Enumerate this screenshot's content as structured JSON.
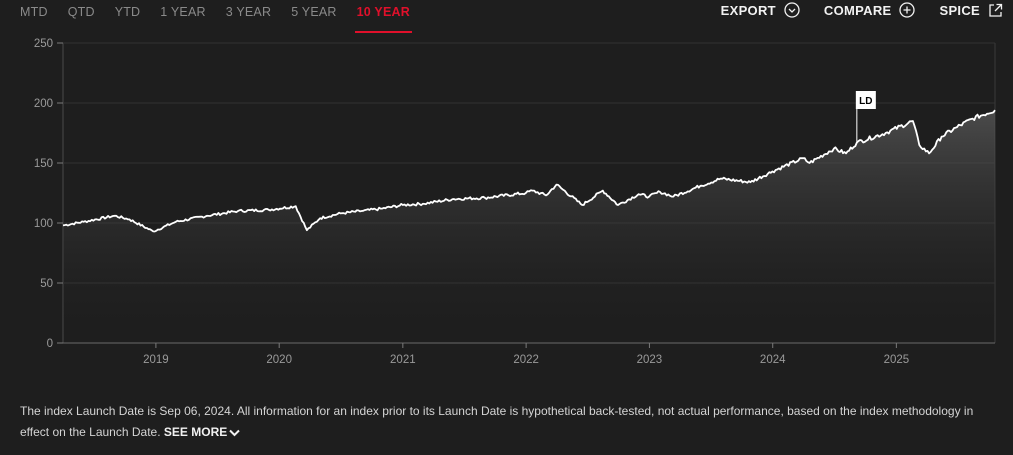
{
  "tabs": [
    {
      "label": "MTD",
      "active": false
    },
    {
      "label": "QTD",
      "active": false
    },
    {
      "label": "YTD",
      "active": false
    },
    {
      "label": "1 YEAR",
      "active": false
    },
    {
      "label": "3 YEAR",
      "active": false
    },
    {
      "label": "5 YEAR",
      "active": false
    },
    {
      "label": "10 YEAR",
      "active": true
    }
  ],
  "actions": {
    "export": "EXPORT",
    "compare": "COMPARE",
    "spice": "SPICE"
  },
  "colors": {
    "background": "#1e1e1e",
    "accent": "#e0102b",
    "line": "#ffffff"
  },
  "icons": [
    "chevron-down-circle-icon",
    "plus-circle-icon",
    "external-link-icon",
    "chevron-down-icon"
  ],
  "chart_data": {
    "type": "line",
    "x_ticks": [
      "2019",
      "2020",
      "2021",
      "2022",
      "2023",
      "2024",
      "2025"
    ],
    "y_ticks": [
      0,
      50,
      100,
      150,
      200,
      250
    ],
    "ylim": [
      0,
      250
    ],
    "xlim": [
      "2018-04-01",
      "2025-10-20"
    ],
    "grid": true,
    "annotation": {
      "label": "LD",
      "date": "2024-09-06",
      "value": 167
    },
    "series": [
      {
        "x": [
          "2018-04-01",
          "2018-06-01",
          "2018-09-01",
          "2018-10-15",
          "2018-12-24",
          "2019-03-01",
          "2019-06-01",
          "2019-09-01",
          "2019-12-01",
          "2020-02-19",
          "2020-03-23",
          "2020-05-01",
          "2020-07-01",
          "2020-09-01",
          "2020-11-01",
          "2021-01-01",
          "2021-03-01",
          "2021-06-01",
          "2021-09-01",
          "2021-12-31",
          "2022-01-20",
          "2022-03-01",
          "2022-04-01",
          "2022-06-16",
          "2022-08-16",
          "2022-09-30",
          "2022-11-30",
          "2022-12-31",
          "2023-02-01",
          "2023-03-13",
          "2023-06-01",
          "2023-07-31",
          "2023-10-27",
          "2023-12-31",
          "2024-03-31",
          "2024-04-19",
          "2024-06-30",
          "2024-08-05",
          "2024-09-06",
          "2024-11-30",
          "2025-02-19",
          "2025-03-10",
          "2025-04-08",
          "2025-05-15",
          "2025-06-30",
          "2025-08-15",
          "2025-10-20"
        ],
        "values": [
          98,
          101,
          106,
          103,
          93,
          101,
          106,
          110,
          111,
          114,
          94,
          104,
          108,
          110,
          112,
          115,
          116,
          120,
          121,
          125,
          127,
          123,
          132,
          115,
          127,
          115,
          124,
          122,
          126,
          122,
          131,
          137,
          134,
          143,
          154,
          150,
          162,
          158,
          167,
          175,
          185,
          165,
          158,
          172,
          180,
          187,
          194
        ]
      }
    ]
  },
  "footnote": {
    "text": "The index Launch Date is Sep 06, 2024. All information for an index prior to its Launch Date is hypothetical back-tested, not actual performance, based on the index methodology in effect on the Launch Date.",
    "see_more": "SEE MORE"
  }
}
